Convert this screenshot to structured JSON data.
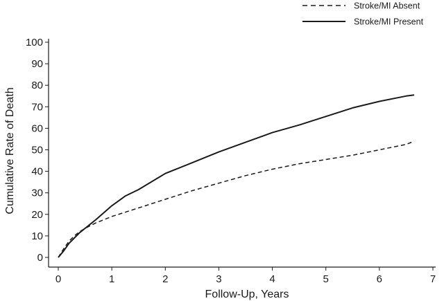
{
  "chart_data": {
    "type": "line",
    "xlabel": "Follow-Up, Years",
    "ylabel": "Cumulative Rate of Death",
    "xlim": [
      0,
      7
    ],
    "ylim": [
      0,
      100
    ],
    "x_ticks": [
      0,
      1,
      2,
      3,
      4,
      5,
      6,
      7
    ],
    "y_ticks": [
      0,
      10,
      20,
      30,
      40,
      50,
      60,
      70,
      80,
      90,
      100
    ],
    "grid": false,
    "legend_position": "top-right",
    "series": [
      {
        "name": "Stroke/MI Absent",
        "line_style": "dashed",
        "color": "#1a1a1a",
        "x": [
          0,
          0.1,
          0.2,
          0.3,
          0.4,
          0.5,
          0.7,
          1.0,
          1.5,
          2.0,
          2.5,
          3.0,
          3.5,
          4.0,
          4.5,
          5.0,
          5.5,
          6.0,
          6.5,
          6.65
        ],
        "y": [
          0,
          4,
          7.5,
          10,
          12,
          13.5,
          16,
          19,
          23,
          27,
          31,
          34.5,
          38,
          41,
          43.5,
          45.5,
          47.5,
          50,
          52.5,
          54
        ]
      },
      {
        "name": "Stroke/MI Present",
        "line_style": "solid",
        "color": "#1a1a1a",
        "x": [
          0,
          0.1,
          0.2,
          0.3,
          0.4,
          0.5,
          0.7,
          1.0,
          1.25,
          1.5,
          2.0,
          2.5,
          3.0,
          3.5,
          4.0,
          4.5,
          5.0,
          5.5,
          6.0,
          6.5,
          6.65
        ],
        "y": [
          0,
          3,
          6.5,
          9,
          11.5,
          13.5,
          17.5,
          24,
          28.5,
          31.5,
          39,
          44,
          49,
          53.5,
          58,
          61.5,
          65.5,
          69.5,
          72.5,
          75,
          75.5
        ]
      }
    ]
  }
}
